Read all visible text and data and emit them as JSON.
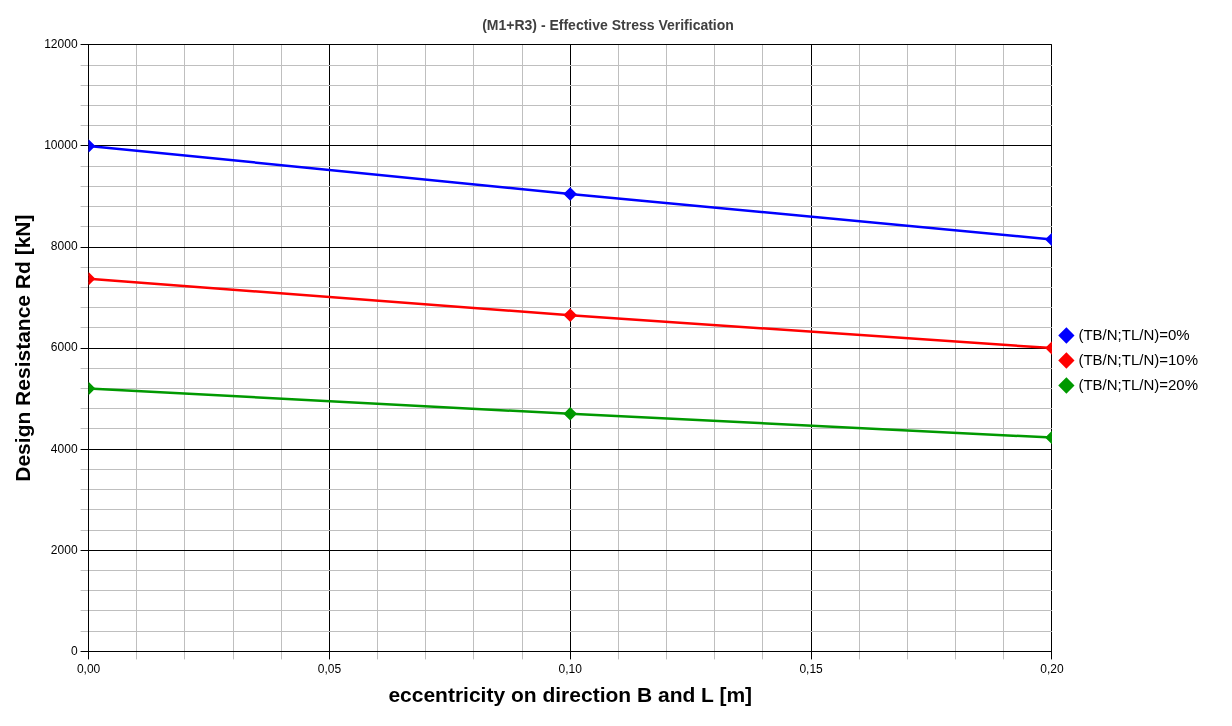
{
  "chart_data": {
    "type": "line",
    "title": "(M1+R3) - Effective Stress Verification",
    "xlabel": "eccentricity on direction B and L [m]",
    "ylabel": "Design Resistance Rd [kN]",
    "x": [
      0,
      0.1,
      0.2
    ],
    "series": [
      {
        "name": "(TB/N;TL/N)=0%",
        "color": "#0000ff",
        "values": [
          10000,
          9050,
          8150
        ]
      },
      {
        "name": "(TB/N;TL/N)=10%",
        "color": "#ff0000",
        "values": [
          7370,
          6650,
          6000
        ]
      },
      {
        "name": "(TB/N;TL/N)=20%",
        "color": "#009900",
        "values": [
          5200,
          4700,
          4230
        ]
      }
    ],
    "xlim": [
      0,
      0.2
    ],
    "xticks": [
      {
        "value": 0,
        "label": "0,00"
      },
      {
        "value": 0.01,
        "label": null
      },
      {
        "value": 0.02,
        "label": null
      },
      {
        "value": 0.03,
        "label": null
      },
      {
        "value": 0.04,
        "label": null
      },
      {
        "value": 0.05,
        "label": "0,05"
      },
      {
        "value": 0.06,
        "label": null
      },
      {
        "value": 0.07,
        "label": null
      },
      {
        "value": 0.08,
        "label": null
      },
      {
        "value": 0.09,
        "label": null
      },
      {
        "value": 0.1,
        "label": "0,10"
      },
      {
        "value": 0.11,
        "label": null
      },
      {
        "value": 0.12,
        "label": null
      },
      {
        "value": 0.13,
        "label": null
      },
      {
        "value": 0.14,
        "label": null
      },
      {
        "value": 0.15,
        "label": "0,15"
      },
      {
        "value": 0.16,
        "label": null
      },
      {
        "value": 0.17,
        "label": null
      },
      {
        "value": 0.18,
        "label": null
      },
      {
        "value": 0.19,
        "label": null
      },
      {
        "value": 0.2,
        "label": "0,20"
      }
    ],
    "ylim": [
      0,
      12000
    ],
    "yticks": [
      0,
      {
        "value": 400,
        "label": null
      },
      {
        "value": 800,
        "label": null
      },
      {
        "value": 1200,
        "label": null
      },
      {
        "value": 1600,
        "label": null
      },
      2000,
      {
        "value": 2400,
        "label": null
      },
      {
        "value": 2800,
        "label": null
      },
      {
        "value": 3200,
        "label": null
      },
      {
        "value": 3600,
        "label": null
      },
      4000,
      {
        "value": 4400,
        "label": null
      },
      {
        "value": 4800,
        "label": null
      },
      {
        "value": 5200,
        "label": null
      },
      {
        "value": 5600,
        "label": null
      },
      6000,
      {
        "value": 6400,
        "label": null
      },
      {
        "value": 6800,
        "label": null
      },
      {
        "value": 7200,
        "label": null
      },
      {
        "value": 7600,
        "label": null
      },
      8000,
      {
        "value": 8400,
        "label": null
      },
      {
        "value": 8800,
        "label": null
      },
      {
        "value": 9200,
        "label": null
      },
      {
        "value": 9600,
        "label": null
      },
      10000,
      {
        "value": 10400,
        "label": null
      },
      {
        "value": 10800,
        "label": null
      },
      {
        "value": 11200,
        "label": null
      },
      {
        "value": 11600,
        "label": null
      },
      12000
    ],
    "grid": true,
    "legend": "right",
    "marker": "diamond",
    "line_style": "solid"
  }
}
